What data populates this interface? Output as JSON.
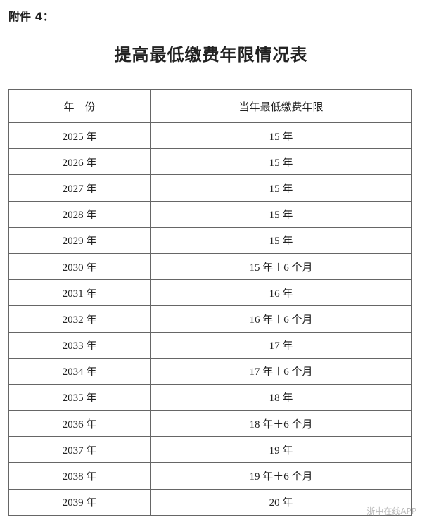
{
  "header": {
    "label": "附件 4：",
    "title": "提高最低缴费年限情况表"
  },
  "table": {
    "columns": [
      "年　份",
      "当年最低缴费年限"
    ],
    "rows": [
      [
        "2025 年",
        "15 年"
      ],
      [
        "2026 年",
        "15 年"
      ],
      [
        "2027 年",
        "15 年"
      ],
      [
        "2028 年",
        "15 年"
      ],
      [
        "2029 年",
        "15 年"
      ],
      [
        "2030 年",
        "15 年＋6 个月"
      ],
      [
        "2031 年",
        "16 年"
      ],
      [
        "2032 年",
        "16 年＋6 个月"
      ],
      [
        "2033 年",
        "17 年"
      ],
      [
        "2034 年",
        "17 年＋6 个月"
      ],
      [
        "2035 年",
        "18 年"
      ],
      [
        "2036 年",
        "18 年＋6 个月"
      ],
      [
        "2037 年",
        "19 年"
      ],
      [
        "2038 年",
        "19 年＋6 个月"
      ],
      [
        "2039 年",
        "20 年"
      ]
    ]
  },
  "watermark": {
    "text": "浙中在线APP"
  }
}
